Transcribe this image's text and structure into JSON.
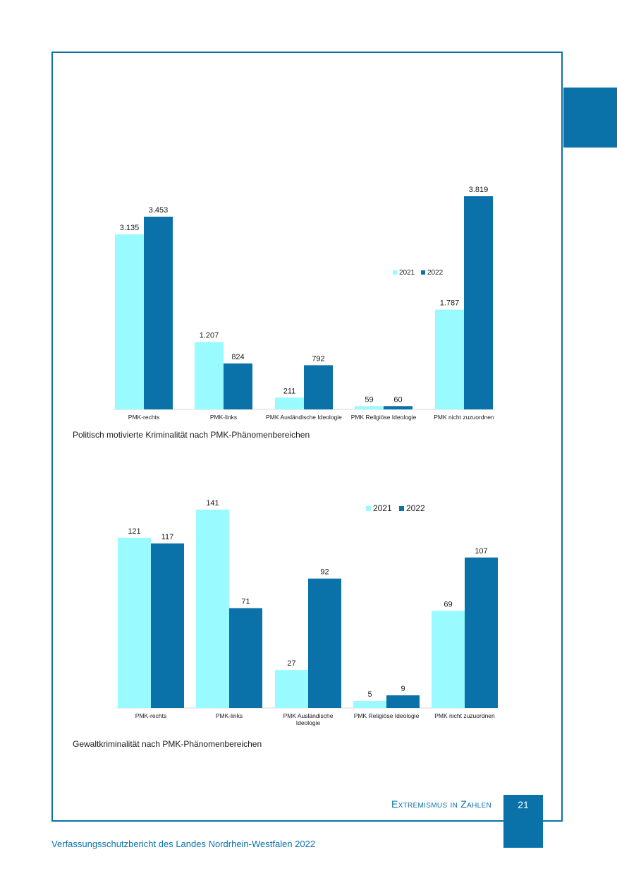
{
  "colors": {
    "accent": "#0a72a8",
    "series_2021": "#99fbff",
    "series_2022": "#0a72a8"
  },
  "chart_data": [
    {
      "type": "bar",
      "categories": [
        "PMK-rechts",
        "PMK-links",
        "PMK Ausländische Ideologie",
        "PMK Religiöse Ideologie",
        "PMK nicht zuzuordnen"
      ],
      "series": [
        {
          "name": "2021",
          "values": [
            3135,
            1207,
            211,
            59,
            1787
          ],
          "labels": [
            "3.135",
            "1.207",
            "211",
            "59",
            "1.787"
          ]
        },
        {
          "name": "2022",
          "values": [
            3453,
            824,
            792,
            60,
            3819
          ],
          "labels": [
            "3.453",
            "824",
            "792",
            "60",
            "3.819"
          ]
        }
      ],
      "ylim": [
        0,
        3819
      ],
      "legend_position": "right",
      "title": "Politisch motivierte Kriminalität nach PMK-Phänomenbereichen"
    },
    {
      "type": "bar",
      "categories": [
        "PMK-rechts",
        "PMK-links",
        "PMK Ausländische Ideologie",
        "PMK Religiöse Ideologie",
        "PMK nicht zuzuordnen"
      ],
      "series": [
        {
          "name": "2021",
          "values": [
            121,
            141,
            27,
            5,
            69
          ],
          "labels": [
            "121",
            "141",
            "27",
            "5",
            "69"
          ]
        },
        {
          "name": "2022",
          "values": [
            117,
            71,
            92,
            9,
            107
          ],
          "labels": [
            "117",
            "71",
            "92",
            "9",
            "107"
          ]
        }
      ],
      "ylim": [
        0,
        141
      ],
      "legend_position": "top-right",
      "title": "Gewaltkriminalität nach PMK-Phänomenbereichen"
    }
  ],
  "page": {
    "section_title": "Extremismus in Zahlen",
    "page_number": "21",
    "footer": "Verfassungsschutzbericht des Landes Nordrhein-Westfalen 2022"
  }
}
